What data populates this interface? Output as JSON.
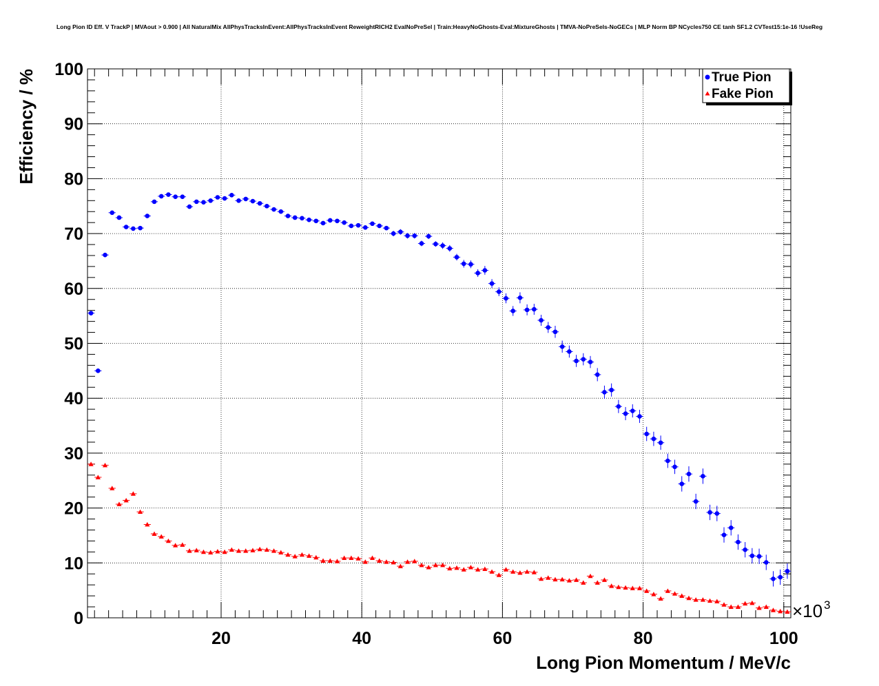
{
  "chart_data": {
    "type": "scatter",
    "title": "Long Pion ID Eff. V TrackP | MVAout > 0.900 | All NaturalMix AllPhysTracksInEvent:AllPhysTracksInEvent ReweightRICH2 EvalNoPreSel | Train:HeavyNoGhosts-Eval:MixtureGhosts | TMVA-NoPreSels-NoGECs | MLP Norm BP NCycles750 CE tanh SF1.2 CVTest15:1e-16 !UseReg",
    "xlabel": "Long Pion Momentum / MeV/c",
    "ylabel": "Efficiency / %",
    "x_multiplier_label": "×10",
    "x_multiplier_exp": "3",
    "xlim": [
      1,
      101
    ],
    "ylim": [
      0,
      100
    ],
    "x_ticks": [
      20,
      40,
      60,
      80,
      100
    ],
    "y_ticks": [
      0,
      10,
      20,
      30,
      40,
      50,
      60,
      70,
      80,
      90,
      100
    ],
    "grid": true,
    "legend_position": "top-right",
    "series": [
      {
        "name": "True Pion",
        "color": "#0000ff",
        "marker": "circle",
        "x": [
          1.5,
          2.5,
          3.5,
          4.5,
          5.5,
          6.5,
          7.5,
          8.5,
          9.5,
          10.5,
          11.5,
          12.5,
          13.5,
          14.5,
          15.5,
          16.5,
          17.5,
          18.5,
          19.5,
          20.5,
          21.5,
          22.5,
          23.5,
          24.5,
          25.5,
          26.5,
          27.5,
          28.5,
          29.5,
          30.5,
          31.5,
          32.5,
          33.5,
          34.5,
          35.5,
          36.5,
          37.5,
          38.5,
          39.5,
          40.5,
          41.5,
          42.5,
          43.5,
          44.5,
          45.5,
          46.5,
          47.5,
          48.5,
          49.5,
          50.5,
          51.5,
          52.5,
          53.5,
          54.5,
          55.5,
          56.5,
          57.5,
          58.5,
          59.5,
          60.5,
          61.5,
          62.5,
          63.5,
          64.5,
          65.5,
          66.5,
          67.5,
          68.5,
          69.5,
          70.5,
          71.5,
          72.5,
          73.5,
          74.5,
          75.5,
          76.5,
          77.5,
          78.5,
          79.5,
          80.5,
          81.5,
          82.5,
          83.5,
          84.5,
          85.5,
          86.5,
          87.5,
          88.5,
          89.5,
          90.5,
          91.5,
          92.5,
          93.5,
          94.5,
          95.5,
          96.5,
          97.5,
          98.5,
          99.5,
          100.5
        ],
        "y": [
          55.5,
          45.0,
          66.1,
          73.8,
          72.9,
          71.2,
          70.9,
          71.0,
          73.2,
          75.8,
          76.8,
          77.1,
          76.7,
          76.7,
          74.9,
          75.8,
          75.7,
          76.0,
          76.6,
          76.4,
          77.0,
          76.0,
          76.3,
          75.9,
          75.5,
          75.0,
          74.4,
          74.0,
          73.2,
          72.9,
          72.8,
          72.5,
          72.3,
          71.9,
          72.4,
          72.3,
          72.0,
          71.4,
          71.5,
          71.1,
          71.8,
          71.4,
          71.0,
          70.0,
          70.3,
          69.6,
          69.6,
          68.2,
          69.5,
          68.1,
          67.8,
          67.3,
          65.7,
          64.5,
          64.4,
          62.8,
          63.3,
          60.9,
          59.4,
          58.2,
          55.9,
          58.3,
          56.1,
          56.2,
          54.2,
          52.9,
          52.1,
          49.4,
          48.5,
          46.8,
          47.1,
          46.6,
          44.3,
          41.1,
          41.5,
          38.5,
          37.2,
          37.7,
          36.7,
          33.5,
          32.6,
          31.9,
          28.6,
          27.5,
          24.4,
          26.2,
          21.2,
          25.8,
          19.2,
          19.0,
          15.1,
          16.4,
          13.8,
          12.4,
          11.3,
          11.2,
          10.1,
          7.1,
          7.4,
          8.5
        ],
        "y_err": [
          0.4,
          0.4,
          0.4,
          0.3,
          0.3,
          0.3,
          0.3,
          0.3,
          0.3,
          0.3,
          0.3,
          0.3,
          0.3,
          0.3,
          0.3,
          0.3,
          0.3,
          0.3,
          0.3,
          0.3,
          0.3,
          0.3,
          0.3,
          0.3,
          0.3,
          0.3,
          0.3,
          0.3,
          0.3,
          0.3,
          0.3,
          0.3,
          0.3,
          0.3,
          0.4,
          0.4,
          0.4,
          0.4,
          0.4,
          0.4,
          0.4,
          0.4,
          0.4,
          0.5,
          0.5,
          0.5,
          0.5,
          0.5,
          0.5,
          0.5,
          0.6,
          0.6,
          0.6,
          0.7,
          0.7,
          0.7,
          0.8,
          0.8,
          0.8,
          0.9,
          0.9,
          1.0,
          1.0,
          1.0,
          1.0,
          1.0,
          1.1,
          1.1,
          1.1,
          1.1,
          1.1,
          1.1,
          1.2,
          1.2,
          1.2,
          1.2,
          1.2,
          1.2,
          1.2,
          1.3,
          1.3,
          1.3,
          1.3,
          1.3,
          1.4,
          1.4,
          1.4,
          1.4,
          1.4,
          1.4,
          1.4,
          1.4,
          1.4,
          1.4,
          1.4,
          1.4,
          1.4,
          1.4,
          1.4,
          1.4
        ]
      },
      {
        "name": "Fake Pion",
        "color": "#ff0000",
        "marker": "triangle",
        "x": [
          1.5,
          2.5,
          3.5,
          4.5,
          5.5,
          6.5,
          7.5,
          8.5,
          9.5,
          10.5,
          11.5,
          12.5,
          13.5,
          14.5,
          15.5,
          16.5,
          17.5,
          18.5,
          19.5,
          20.5,
          21.5,
          22.5,
          23.5,
          24.5,
          25.5,
          26.5,
          27.5,
          28.5,
          29.5,
          30.5,
          31.5,
          32.5,
          33.5,
          34.5,
          35.5,
          36.5,
          37.5,
          38.5,
          39.5,
          40.5,
          41.5,
          42.5,
          43.5,
          44.5,
          45.5,
          46.5,
          47.5,
          48.5,
          49.5,
          50.5,
          51.5,
          52.5,
          53.5,
          54.5,
          55.5,
          56.5,
          57.5,
          58.5,
          59.5,
          60.5,
          61.5,
          62.5,
          63.5,
          64.5,
          65.5,
          66.5,
          67.5,
          68.5,
          69.5,
          70.5,
          71.5,
          72.5,
          73.5,
          74.5,
          75.5,
          76.5,
          77.5,
          78.5,
          79.5,
          80.5,
          81.5,
          82.5,
          83.5,
          84.5,
          85.5,
          86.5,
          87.5,
          88.5,
          89.5,
          90.5,
          91.5,
          92.5,
          93.5,
          94.5,
          95.5,
          96.5,
          97.5,
          98.5,
          99.5,
          100.5
        ],
        "y": [
          28.0,
          25.6,
          27.8,
          23.6,
          20.7,
          21.4,
          22.6,
          19.3,
          17.0,
          15.3,
          14.8,
          14.0,
          13.2,
          13.3,
          12.2,
          12.3,
          12.0,
          11.9,
          12.1,
          12.0,
          12.4,
          12.2,
          12.2,
          12.3,
          12.5,
          12.4,
          12.2,
          11.9,
          11.5,
          11.2,
          11.5,
          11.3,
          11.0,
          10.4,
          10.4,
          10.3,
          10.9,
          10.9,
          10.8,
          10.2,
          10.9,
          10.4,
          10.2,
          10.1,
          9.4,
          10.2,
          10.3,
          9.6,
          9.2,
          9.6,
          9.6,
          9.0,
          9.1,
          8.8,
          9.2,
          8.8,
          8.9,
          8.4,
          7.8,
          8.8,
          8.4,
          8.2,
          8.4,
          8.3,
          7.1,
          7.3,
          7.0,
          7.0,
          6.8,
          6.9,
          6.4,
          7.6,
          6.4,
          6.9,
          5.8,
          5.6,
          5.5,
          5.4,
          5.4,
          4.9,
          4.3,
          3.5,
          4.9,
          4.4,
          4.0,
          3.6,
          3.3,
          3.3,
          3.1,
          3.0,
          2.4,
          2.0,
          2.0,
          2.6,
          2.7,
          1.8,
          2.0,
          1.4,
          1.2,
          1.1
        ]
      }
    ]
  }
}
